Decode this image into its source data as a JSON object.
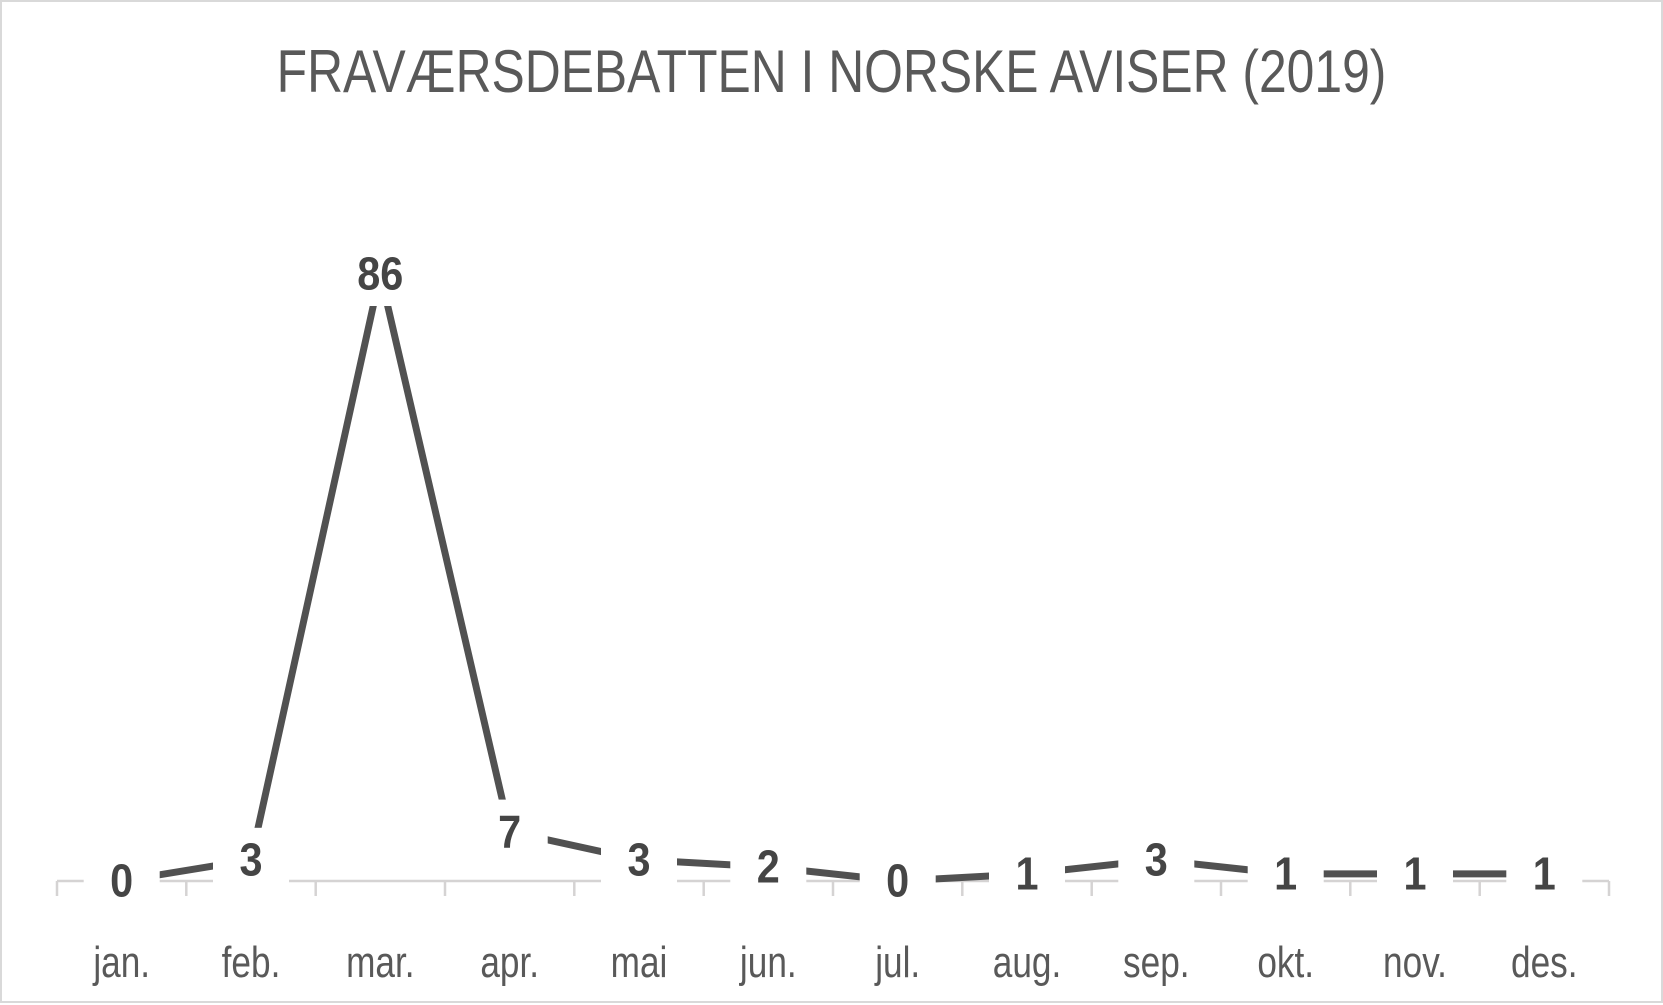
{
  "chart_data": {
    "type": "line",
    "title": "FRAVÆRSDEBATTEN I NORSKE AVISER (2019)",
    "categories": [
      "jan.",
      "feb.",
      "mar.",
      "apr.",
      "mai",
      "jun.",
      "jul.",
      "aug.",
      "sep.",
      "okt.",
      "nov.",
      "des."
    ],
    "values": [
      0,
      3,
      86,
      7,
      3,
      2,
      0,
      1,
      3,
      1,
      1,
      1
    ],
    "xlabel": "",
    "ylabel": "",
    "ylim": [
      0,
      86
    ],
    "y_axis_visible": false,
    "grid": false,
    "legend": "none",
    "data_labels": "centered on points, white background",
    "colors": {
      "line": "#515151",
      "data_label_text": "#454545",
      "data_label_background": "#ffffff",
      "axis": "#d5d3d3",
      "axis_text": "#595959",
      "title_text": "#595959",
      "chart_border": "#d9d9d9",
      "background": "#ffffff"
    }
  }
}
